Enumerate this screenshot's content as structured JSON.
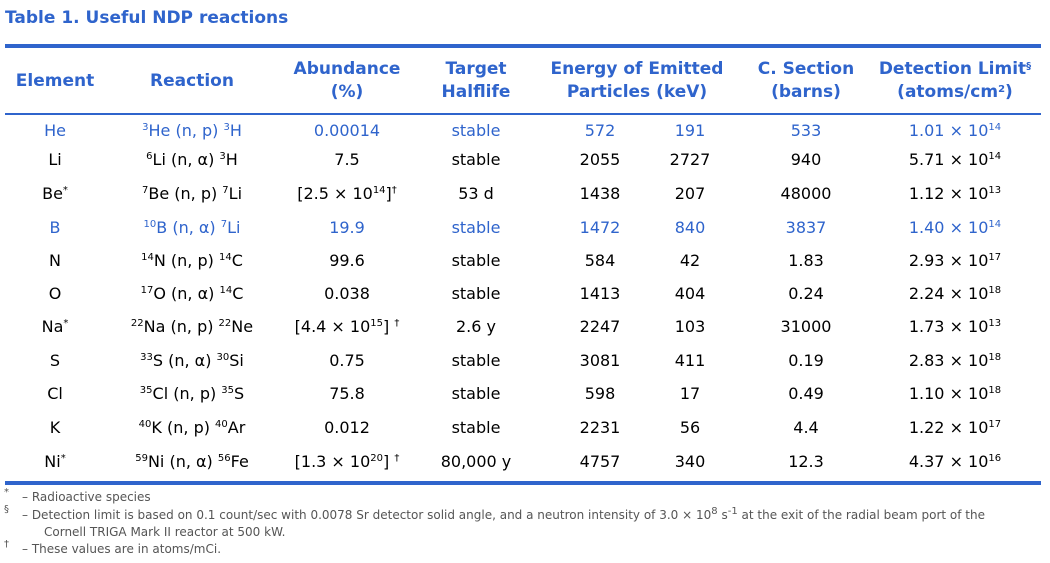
{
  "title": "Table 1. Useful NDP reactions",
  "colors": {
    "accent": "#2f64cc"
  },
  "headers": {
    "element": "Element",
    "reaction": "Reaction",
    "abundance_l1": "Abundance",
    "abundance_l2": "(%)",
    "halflife_l1": "Target",
    "halflife_l2": "Halflife",
    "energy_l1": "Energy of Emitted",
    "energy_l2": "Particles (keV)",
    "section_l1": "C. Section",
    "section_l2": "(barns)",
    "limit_l1": "Detection Limit",
    "limit_sup": "§",
    "limit_l2a": "(atoms/cm",
    "limit_l2sup": "2",
    "limit_l2b": ")"
  },
  "rows": [
    {
      "el": "He",
      "el_sup": "",
      "t_mass": "3",
      "t_sym": "He",
      "rx": "(n, p)",
      "p_mass": "3",
      "p_sym": "H",
      "ab": "0.00014",
      "ab_sup": "",
      "hl": "stable",
      "e1": "572",
      "e2": "191",
      "cs": "533",
      "dl": "1.01 × 10",
      "dl_exp": "14",
      "highlight": true
    },
    {
      "el": "Li",
      "el_sup": "",
      "t_mass": "6",
      "t_sym": "Li",
      "rx": "(n, α)",
      "p_mass": "3",
      "p_sym": "H",
      "ab": "7.5",
      "ab_sup": "",
      "hl": "stable",
      "e1": "2055",
      "e2": "2727",
      "cs": "940",
      "dl": "5.71 × 10",
      "dl_exp": "14",
      "highlight": false
    },
    {
      "el": "Be",
      "el_sup": "*",
      "t_mass": "7",
      "t_sym": "Be",
      "rx": "(n, p)",
      "p_mass": "7",
      "p_sym": "Li",
      "ab": "[2.5 × 10",
      "ab_exp": "14",
      "ab_close": "]",
      "ab_sup": "†",
      "hl": "53 d",
      "e1": "1438",
      "e2": "207",
      "cs": "48000",
      "dl": "1.12 × 10",
      "dl_exp": "13",
      "highlight": false
    },
    {
      "el": "B",
      "el_sup": "",
      "t_mass": "10",
      "t_sym": "B",
      "rx": "(n, α)",
      "p_mass": "7",
      "p_sym": "Li",
      "ab": "19.9",
      "ab_sup": "",
      "hl": "stable",
      "e1": "1472",
      "e2": "840",
      "cs": "3837",
      "dl": "1.40 × 10",
      "dl_exp": "14",
      "highlight": true
    },
    {
      "el": "N",
      "el_sup": "",
      "t_mass": "14",
      "t_sym": "N",
      "rx": "(n, p)",
      "p_mass": "14",
      "p_sym": "C",
      "ab": "99.6",
      "ab_sup": "",
      "hl": "stable",
      "e1": "584",
      "e2": "42",
      "cs": "1.83",
      "dl": "2.93 × 10",
      "dl_exp": "17",
      "highlight": false
    },
    {
      "el": "O",
      "el_sup": "",
      "t_mass": "17",
      "t_sym": "O",
      "rx": "(n, α)",
      "p_mass": "14",
      "p_sym": "C",
      "ab": "0.038",
      "ab_sup": "",
      "hl": "stable",
      "e1": "1413",
      "e2": "404",
      "cs": "0.24",
      "dl": "2.24 × 10",
      "dl_exp": "18",
      "highlight": false
    },
    {
      "el": "Na",
      "el_sup": "*",
      "t_mass": "22",
      "t_sym": "Na",
      "rx": "(n, p)",
      "p_mass": "22",
      "p_sym": "Ne",
      "ab": "[4.4 × 10",
      "ab_exp": "15",
      "ab_close": "] ",
      "ab_sup": "†",
      "hl": "2.6 y",
      "e1": "2247",
      "e2": "103",
      "cs": "31000",
      "dl": "1.73 × 10",
      "dl_exp": "13",
      "highlight": false
    },
    {
      "el": "S",
      "el_sup": "",
      "t_mass": "33",
      "t_sym": "S",
      "rx": "(n, α)",
      "p_mass": "30",
      "p_sym": "Si",
      "ab": "0.75",
      "ab_sup": "",
      "hl": "stable",
      "e1": "3081",
      "e2": "411",
      "cs": "0.19",
      "dl": "2.83 × 10",
      "dl_exp": "18",
      "highlight": false
    },
    {
      "el": "Cl",
      "el_sup": "",
      "t_mass": "35",
      "t_sym": "Cl",
      "rx": "(n, p)",
      "p_mass": "35",
      "p_sym": "S",
      "ab": "75.8",
      "ab_sup": "",
      "hl": "stable",
      "e1": "598",
      "e2": "17",
      "cs": "0.49",
      "dl": "1.10 × 10",
      "dl_exp": "18",
      "highlight": false
    },
    {
      "el": "K",
      "el_sup": "",
      "t_mass": "40",
      "t_sym": "K",
      "rx": "(n, p)",
      "p_mass": "40",
      "p_sym": "Ar",
      "ab": "0.012",
      "ab_sup": "",
      "hl": "stable",
      "e1": "2231",
      "e2": "56",
      "cs": "4.4",
      "dl": "1.22 × 10",
      "dl_exp": "17",
      "highlight": false
    },
    {
      "el": "Ni",
      "el_sup": "*",
      "t_mass": "59",
      "t_sym": "Ni",
      "rx": "(n, α)",
      "p_mass": "56",
      "p_sym": "Fe",
      "ab": "[1.3 × 10",
      "ab_exp": "20",
      "ab_close": "] ",
      "ab_sup": "†",
      "hl": "80,000 y",
      "e1": "4757",
      "e2": "340",
      "cs": "12.3",
      "dl": "4.37 × 10",
      "dl_exp": "16",
      "highlight": false
    }
  ],
  "notes": [
    {
      "mark": "*",
      "text": "– Radioactive species"
    },
    {
      "mark": "§",
      "text": "– Detection limit is based on 0.1 count/sec with 0.0078 Sr detector solid angle, and a neutron intensity of 3.0 × 10",
      "exp": "8",
      "text2": " s",
      "exp2": "-1",
      "text3": " at the exit of the radial beam port of the"
    },
    {
      "mark": "",
      "text": "Cornell TRIGA Mark II reactor at 500 kW."
    },
    {
      "mark": "†",
      "text": "– These values are in atoms/mCi."
    }
  ]
}
